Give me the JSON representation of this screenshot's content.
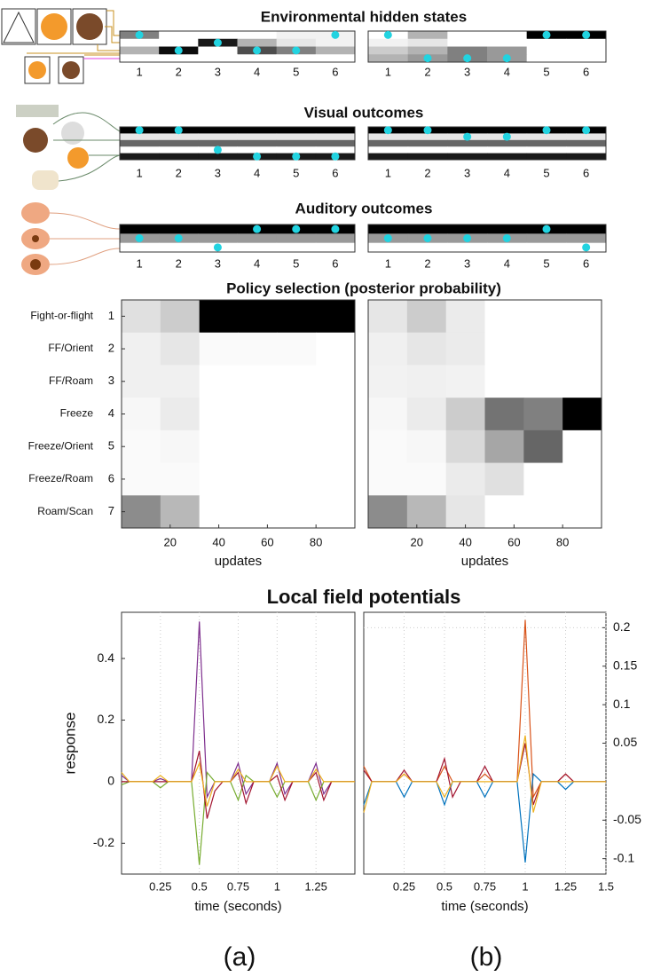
{
  "chart_data": [
    {
      "type": "raster",
      "title": "Environmental hidden states",
      "categories": [
        "1",
        "2",
        "3",
        "4",
        "5",
        "6"
      ],
      "rows": [
        [
          0.5,
          0,
          0,
          0,
          0.05,
          0.05
        ],
        [
          0,
          0,
          0.9,
          0.3,
          0.1,
          0.05
        ],
        [
          0.3,
          0.95,
          0,
          0.7,
          0.5,
          0.3
        ],
        [
          0,
          0,
          0,
          0,
          0,
          0
        ]
      ],
      "markers": [
        0,
        2,
        1,
        2,
        2,
        0
      ],
      "marker_color": "#22d3e0"
    },
    {
      "type": "raster",
      "categories": [
        "1",
        "2",
        "3",
        "4",
        "5",
        "6"
      ],
      "rows": [
        [
          0,
          0.3,
          0,
          0,
          1,
          1
        ],
        [
          0.05,
          0.1,
          0,
          0,
          0,
          0
        ],
        [
          0.2,
          0.3,
          0.5,
          0.4,
          0,
          0
        ],
        [
          0.3,
          0.4,
          0.5,
          0.4,
          0,
          0
        ]
      ],
      "markers": [
        0,
        3,
        3,
        3,
        0,
        0
      ],
      "marker_color": "#22d3e0"
    },
    {
      "type": "raster",
      "title": "Visual outcomes",
      "categories": [
        "1",
        "2",
        "3",
        "4",
        "5",
        "6"
      ],
      "rows": [
        [
          1,
          1,
          1,
          1,
          1,
          1
        ],
        [
          0.1,
          0.1,
          0.1,
          0.1,
          0.1,
          0.1
        ],
        [
          0.6,
          0.6,
          0.6,
          0.6,
          0.6,
          0.6
        ],
        [
          0,
          0,
          0,
          0,
          0,
          0
        ],
        [
          0.9,
          0.9,
          0.9,
          0.9,
          0.9,
          0.9
        ]
      ],
      "markers": [
        0,
        0,
        3,
        4,
        4,
        4
      ],
      "marker_color": "#22d3e0"
    },
    {
      "type": "raster",
      "categories": [
        "1",
        "2",
        "3",
        "4",
        "5",
        "6"
      ],
      "rows": [
        [
          1,
          1,
          1,
          1,
          1,
          1
        ],
        [
          0.1,
          0.1,
          0.1,
          0.1,
          0.1,
          0.1
        ],
        [
          0.6,
          0.6,
          0.6,
          0.6,
          0.6,
          0.6
        ],
        [
          0,
          0,
          0,
          0,
          0,
          0
        ],
        [
          0.9,
          0.9,
          0.9,
          0.9,
          0.9,
          0.9
        ]
      ],
      "markers": [
        0,
        0,
        1,
        1,
        0,
        0
      ],
      "marker_color": "#22d3e0"
    },
    {
      "type": "raster",
      "title": "Auditory outcomes",
      "categories": [
        "1",
        "2",
        "3",
        "4",
        "5",
        "6"
      ],
      "rows": [
        [
          1,
          1,
          1,
          1,
          1,
          1
        ],
        [
          0.4,
          0.4,
          0.4,
          0.4,
          0.4,
          0.4
        ],
        [
          0,
          0,
          0,
          0,
          0,
          0
        ]
      ],
      "markers": [
        1,
        1,
        2,
        0,
        0,
        0
      ],
      "marker_color": "#22d3e0"
    },
    {
      "type": "raster",
      "categories": [
        "1",
        "2",
        "3",
        "4",
        "5",
        "6"
      ],
      "rows": [
        [
          1,
          1,
          1,
          1,
          1,
          1
        ],
        [
          0.4,
          0.4,
          0.4,
          0.4,
          0.4,
          0.4
        ],
        [
          0,
          0,
          0,
          0,
          0,
          0
        ]
      ],
      "markers": [
        1,
        1,
        1,
        1,
        0,
        2
      ],
      "marker_color": "#22d3e0"
    },
    {
      "type": "heatmap",
      "title": "Policy selection (posterior probability)",
      "row_labels": [
        "Fight-or-flight",
        "FF/Orient",
        "FF/Roam",
        "Freeze",
        "Freeze/Orient",
        "Freeze/Roam",
        "Roam/Scan"
      ],
      "yticks": [
        1,
        2,
        3,
        4,
        5,
        6,
        7
      ],
      "bins": [
        0,
        16,
        32,
        48,
        64,
        80,
        96
      ],
      "xlim": [
        0,
        96
      ],
      "xticks": [
        20,
        40,
        60,
        80
      ],
      "xlabel": "updates",
      "values": [
        [
          0.12,
          0.2,
          1,
          1,
          1,
          1
        ],
        [
          0.06,
          0.1,
          0.02,
          0.02,
          0.02,
          0
        ],
        [
          0.06,
          0.06,
          0,
          0,
          0,
          0
        ],
        [
          0.03,
          0.08,
          0,
          0,
          0,
          0
        ],
        [
          0.02,
          0.03,
          0,
          0,
          0,
          0
        ],
        [
          0.02,
          0.02,
          0,
          0,
          0,
          0
        ],
        [
          0.45,
          0.28,
          0,
          0,
          0,
          0
        ]
      ]
    },
    {
      "type": "heatmap",
      "bins": [
        0,
        16,
        32,
        48,
        64,
        80,
        96
      ],
      "xlim": [
        0,
        96
      ],
      "xticks": [
        20,
        40,
        60,
        80
      ],
      "xlabel": "updates",
      "values": [
        [
          0.1,
          0.2,
          0.08,
          0,
          0,
          0
        ],
        [
          0.06,
          0.1,
          0.08,
          0,
          0,
          0
        ],
        [
          0.05,
          0.06,
          0.05,
          0,
          0,
          0
        ],
        [
          0.03,
          0.08,
          0.2,
          0.55,
          0.5,
          1
        ],
        [
          0.02,
          0.03,
          0.15,
          0.35,
          0.6,
          0
        ],
        [
          0.02,
          0.02,
          0.08,
          0.12,
          0,
          0
        ],
        [
          0.45,
          0.28,
          0.1,
          0,
          0,
          0
        ]
      ]
    },
    {
      "type": "line",
      "title": "Local field potentials",
      "xlabel": "time (seconds)",
      "ylabel": "response",
      "panel_label": "(a)",
      "xlim": [
        0,
        1.5
      ],
      "xticks": [
        0.25,
        0.5,
        0.75,
        1,
        1.25
      ],
      "ylim": [
        -0.3,
        0.55
      ],
      "yticks": [
        -0.2,
        0,
        0.2,
        0.4
      ],
      "grid": true,
      "yaxis_side": "left",
      "x": [
        0,
        0.05,
        0.1,
        0.15,
        0.2,
        0.25,
        0.3,
        0.35,
        0.4,
        0.45,
        0.5,
        0.55,
        0.6,
        0.65,
        0.7,
        0.75,
        0.8,
        0.85,
        0.9,
        0.95,
        1,
        1.05,
        1.1,
        1.15,
        1.2,
        1.25,
        1.3,
        1.35,
        1.4,
        1.45,
        1.5
      ],
      "series": [
        {
          "color": "#7e2f8e",
          "values": [
            0.02,
            0,
            0,
            0,
            0,
            0.01,
            0,
            0,
            0,
            0,
            0.52,
            -0.05,
            0,
            0,
            0,
            0.06,
            -0.04,
            0,
            0,
            0,
            0.06,
            -0.04,
            0,
            0,
            0,
            0.06,
            -0.04,
            0,
            0,
            0,
            0
          ]
        },
        {
          "color": "#77ac30",
          "values": [
            -0.01,
            0,
            0,
            0,
            0,
            -0.02,
            0,
            0,
            0,
            0,
            -0.27,
            0.03,
            0,
            0,
            0,
            -0.06,
            0.02,
            0,
            0,
            0,
            -0.05,
            0,
            0,
            0,
            0,
            -0.06,
            0,
            0,
            0,
            0,
            0
          ]
        },
        {
          "color": "#a2142f",
          "values": [
            0,
            0,
            0,
            0,
            0,
            0,
            0,
            0,
            0,
            0,
            0.1,
            -0.12,
            -0.03,
            0,
            0,
            0.03,
            -0.07,
            0,
            0,
            0,
            0.02,
            -0.06,
            0,
            0,
            0,
            0.03,
            -0.06,
            0,
            0,
            0,
            0
          ]
        },
        {
          "color": "#edb120",
          "values": [
            0.03,
            0,
            0,
            0,
            0,
            0.02,
            0,
            0,
            0,
            0,
            0.06,
            -0.08,
            0,
            0,
            0,
            0.04,
            0,
            0,
            0,
            0,
            0.05,
            0,
            0,
            0,
            0,
            0.04,
            0,
            0,
            0,
            0,
            0
          ]
        }
      ]
    },
    {
      "type": "line",
      "xlabel": "time (seconds)",
      "panel_label": "(b)",
      "xlim": [
        0,
        1.5
      ],
      "xticks": [
        0.25,
        0.5,
        0.75,
        1,
        1.25,
        1.5
      ],
      "ylim": [
        -0.12,
        0.22
      ],
      "yticks": [
        -0.1,
        -0.05,
        0.05,
        0.1,
        0.15,
        0.2
      ],
      "grid": true,
      "yaxis_side": "right",
      "x": [
        0,
        0.05,
        0.1,
        0.15,
        0.2,
        0.25,
        0.3,
        0.35,
        0.4,
        0.45,
        0.5,
        0.55,
        0.6,
        0.65,
        0.7,
        0.75,
        0.8,
        0.85,
        0.9,
        0.95,
        1,
        1.05,
        1.1,
        1.15,
        1.2,
        1.25,
        1.3,
        1.35,
        1.4,
        1.45,
        1.5
      ],
      "series": [
        {
          "color": "#d95319",
          "values": [
            0.02,
            0,
            0,
            0,
            0,
            0.01,
            0,
            0,
            0,
            0,
            0.02,
            0,
            0,
            0,
            0,
            0.01,
            0,
            0,
            0,
            0,
            0.21,
            -0.02,
            0,
            0,
            0,
            0.01,
            0,
            0,
            0,
            0,
            0
          ]
        },
        {
          "color": "#0072bd",
          "values": [
            -0.03,
            0,
            0,
            0,
            0,
            -0.02,
            0,
            0,
            0,
            0,
            -0.03,
            0,
            0,
            0,
            0,
            -0.02,
            0,
            0,
            0,
            0,
            -0.105,
            0.01,
            0,
            0,
            0,
            -0.01,
            0,
            0,
            0,
            0,
            0
          ]
        },
        {
          "color": "#a2142f",
          "values": [
            0.015,
            0,
            0,
            0,
            0,
            0.015,
            0,
            0,
            0,
            0,
            0.03,
            -0.02,
            0,
            0,
            0,
            0.02,
            0,
            0,
            0,
            0,
            0.05,
            -0.03,
            0,
            0,
            0,
            0.01,
            0,
            0,
            0,
            0,
            0
          ]
        },
        {
          "color": "#edb120",
          "values": [
            -0.04,
            0,
            0,
            0,
            0,
            0.01,
            0,
            0,
            0,
            0,
            -0.02,
            0,
            0,
            0,
            0,
            0,
            0,
            0,
            0,
            0,
            0.06,
            -0.04,
            0,
            0,
            0,
            0,
            0,
            0,
            0,
            0,
            0
          ]
        }
      ]
    }
  ]
}
